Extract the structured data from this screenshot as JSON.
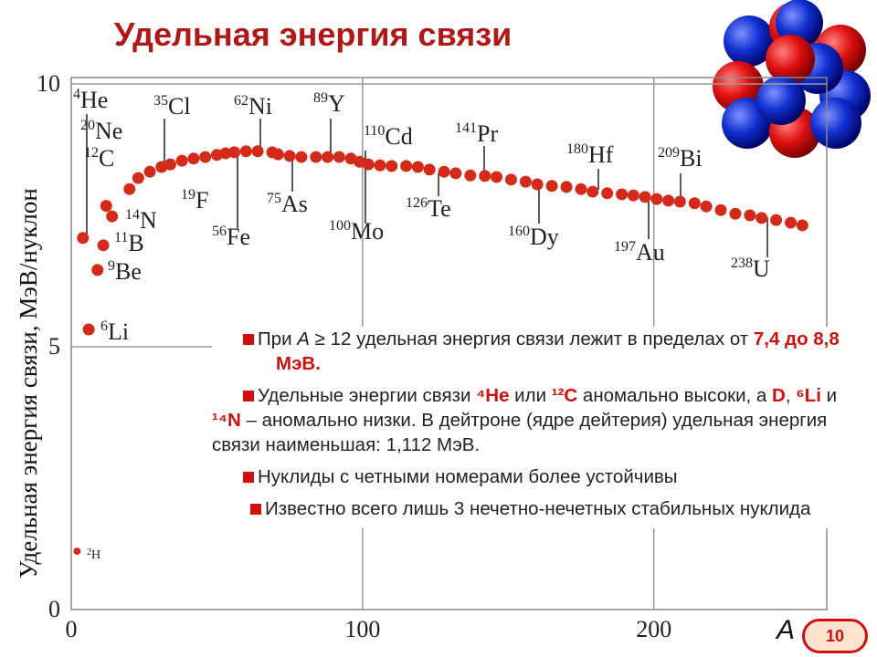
{
  "slide": {
    "title": "Удельная энергия связи",
    "page_number": "10",
    "bullets": [
      [
        {
          "text": "При "
        },
        {
          "text": "A",
          "italic": true
        },
        {
          "text": " ≥ 12 удельная энергия связи лежит в пределах от "
        },
        {
          "text": "7,4 до 8,8 МэВ.",
          "color": "#d01010",
          "bold": true
        }
      ],
      [
        {
          "text": "Удельные энергии связи "
        },
        {
          "text": "⁴He",
          "color": "#d01010",
          "bold": true
        },
        {
          "text": " или "
        },
        {
          "text": "¹²C",
          "color": "#d01010",
          "bold": true
        },
        {
          "text": " аномально высоки, а "
        },
        {
          "text": "D",
          "color": "#d01010",
          "bold": true
        },
        {
          "text": ", "
        },
        {
          "text": "⁶Li",
          "color": "#d01010",
          "bold": true
        },
        {
          "text": " и "
        },
        {
          "text": "¹⁴N",
          "color": "#d01010",
          "bold": true
        },
        {
          "text": " – аномально низки. В дейтроне (ядре дейтерия) удельная энергия связи наименьшая: 1,112 МэВ."
        }
      ],
      [
        {
          "text": "Нуклиды с четными номерами более устойчивы"
        }
      ],
      [
        {
          "text": "Известно всего лишь 3 нечетно-нечетных стабильных нуклида"
        }
      ]
    ]
  },
  "chart_data": {
    "type": "scatter",
    "y_label": "Удельная энергия связи, МэВ/нуклон",
    "x_label": "A",
    "color": "#d42a1a",
    "grid": true,
    "xlim": [
      0,
      260
    ],
    "xticks": [
      0,
      100,
      200
    ],
    "ylim": [
      0,
      10
    ],
    "yticks": [
      0,
      5,
      10
    ],
    "x": [
      2,
      4,
      6,
      9,
      11,
      12,
      14,
      20,
      23,
      27,
      31,
      34,
      38,
      42,
      46,
      50,
      53,
      56,
      60,
      64,
      69,
      71,
      75,
      79,
      84,
      88,
      92,
      96,
      99,
      102,
      106,
      110,
      115,
      119,
      123,
      128,
      132,
      137,
      142,
      146,
      151,
      156,
      160,
      165,
      170,
      175,
      179,
      184,
      189,
      193,
      197,
      201,
      205,
      209,
      214,
      218,
      223,
      228,
      233,
      237,
      242,
      247,
      251
    ],
    "values": [
      1.11,
      7.07,
      5.33,
      6.46,
      6.93,
      7.68,
      7.48,
      8.0,
      8.21,
      8.33,
      8.42,
      8.47,
      8.54,
      8.58,
      8.61,
      8.65,
      8.68,
      8.7,
      8.72,
      8.72,
      8.7,
      8.66,
      8.63,
      8.61,
      8.61,
      8.61,
      8.61,
      8.58,
      8.52,
      8.47,
      8.45,
      8.44,
      8.44,
      8.42,
      8.37,
      8.33,
      8.3,
      8.26,
      8.25,
      8.23,
      8.18,
      8.14,
      8.09,
      8.06,
      8.04,
      8.0,
      7.95,
      7.92,
      7.9,
      7.88,
      7.85,
      7.81,
      7.78,
      7.76,
      7.73,
      7.67,
      7.6,
      7.53,
      7.5,
      7.45,
      7.41,
      7.36,
      7.31
    ],
    "annotations": [
      {
        "mass": "4",
        "symbol": "He"
      },
      {
        "mass": "20",
        "symbol": "Ne"
      },
      {
        "mass": "12",
        "symbol": "C"
      },
      {
        "mass": "35",
        "symbol": "Cl"
      },
      {
        "mass": "62",
        "symbol": "Ni"
      },
      {
        "mass": "89",
        "symbol": "Y"
      },
      {
        "mass": "110",
        "symbol": "Cd"
      },
      {
        "mass": "141",
        "symbol": "Pr"
      },
      {
        "mass": "180",
        "symbol": "Hf"
      },
      {
        "mass": "209",
        "symbol": "Bi"
      },
      {
        "mass": "19",
        "symbol": "F"
      },
      {
        "mass": "14",
        "symbol": "N"
      },
      {
        "mass": "11",
        "symbol": "B"
      },
      {
        "mass": "9",
        "symbol": "Be"
      },
      {
        "mass": "6",
        "symbol": "Li"
      },
      {
        "mass": "2",
        "symbol": "H"
      },
      {
        "mass": "75",
        "symbol": "As"
      },
      {
        "mass": "56",
        "symbol": "Fe"
      },
      {
        "mass": "100",
        "symbol": "Mo"
      },
      {
        "mass": "126",
        "symbol": "Te"
      },
      {
        "mass": "160",
        "symbol": "Dy"
      },
      {
        "mass": "197",
        "symbol": "Au"
      },
      {
        "mass": "238",
        "symbol": "U"
      }
    ]
  }
}
